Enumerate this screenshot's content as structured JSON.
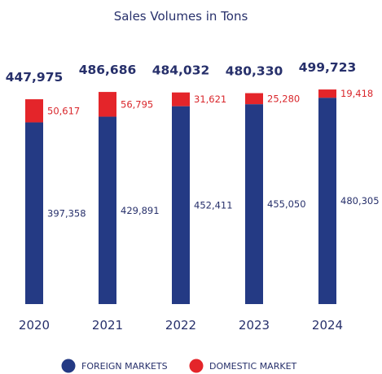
{
  "chart_data": {
    "type": "bar",
    "stacked": true,
    "title": "Sales Volumes in Tons",
    "categories": [
      "2020",
      "2021",
      "2022",
      "2023",
      "2024"
    ],
    "series": [
      {
        "name": "FOREIGN MARKETS",
        "color": "#243a84",
        "values": [
          397358,
          429891,
          452411,
          455050,
          480305
        ],
        "labels": [
          "397,358",
          "429,891",
          "452,411",
          "455,050",
          "480,305"
        ]
      },
      {
        "name": "DOMESTIC MARKET",
        "color": "#e4252a",
        "values": [
          50617,
          56795,
          31621,
          25280,
          19418
        ],
        "labels": [
          "50,617",
          "56,795",
          "31,621",
          "25,280",
          "19,418"
        ]
      }
    ],
    "totals": [
      447975,
      486686,
      484032,
      480330,
      499723
    ],
    "total_labels": [
      "447,975",
      "486,686",
      "484,032",
      "480,330",
      "499,723"
    ],
    "legend_position": "bottom",
    "grid": false
  }
}
